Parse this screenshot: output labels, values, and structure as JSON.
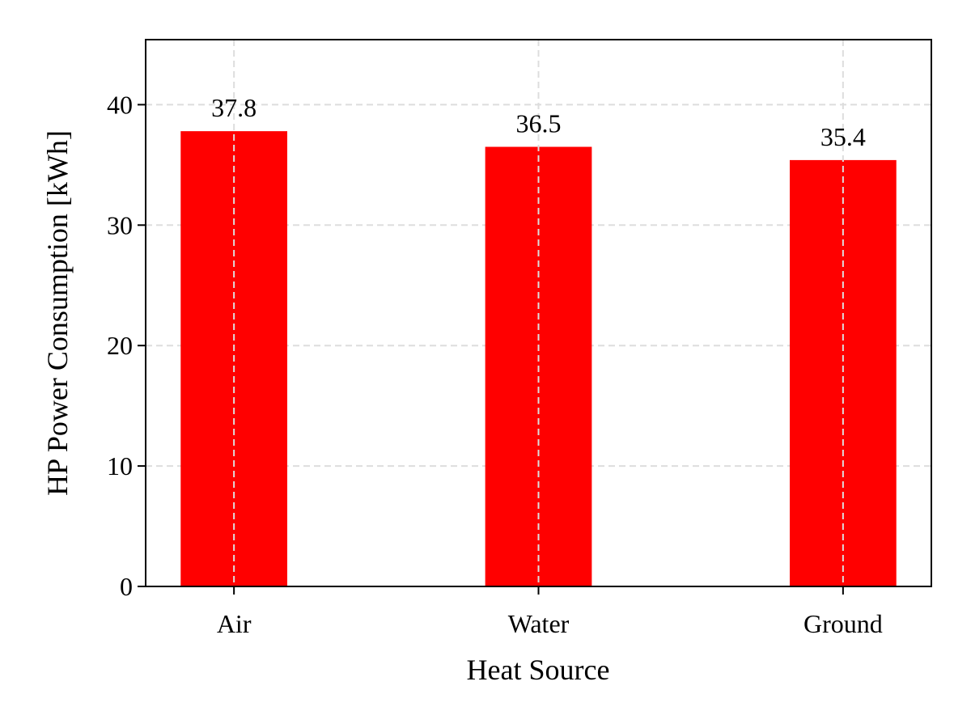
{
  "chart_data": {
    "type": "bar",
    "title": "",
    "xlabel": "Heat Source",
    "ylabel": "HP Power Consumption [kWh]",
    "categories": [
      "Air",
      "Water",
      "Ground"
    ],
    "values": [
      37.8,
      36.5,
      35.4
    ],
    "data_labels": [
      "37.8",
      "36.5",
      "35.4"
    ],
    "ylim": [
      0,
      45.4
    ],
    "xlim": [
      -0.29,
      2.29
    ],
    "yticks": [
      0,
      10,
      20,
      30,
      40
    ],
    "ytick_labels": [
      "0",
      "10",
      "20",
      "30",
      "40"
    ],
    "bar_width": 0.35,
    "grid": true,
    "bar_color": "#ff0000",
    "grid_color": "#dddddd"
  }
}
